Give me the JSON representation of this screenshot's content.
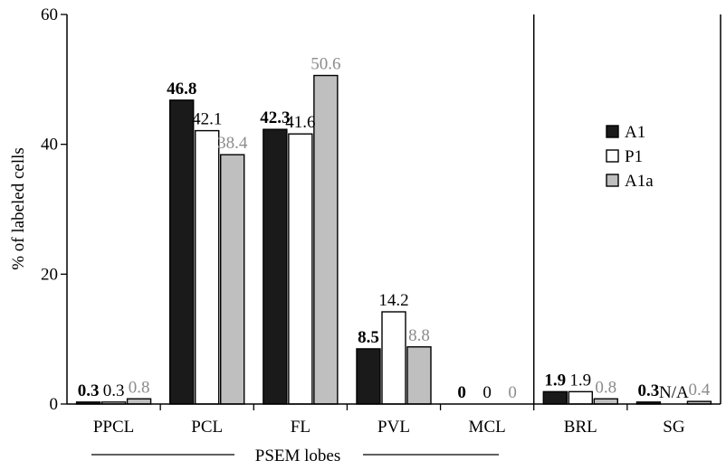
{
  "chart_data": {
    "type": "bar",
    "ylabel": "% of labeled cells",
    "xlabel": "PSEM lobes",
    "ylim": [
      0,
      60
    ],
    "yticks": [
      0,
      20,
      40,
      60
    ],
    "categories": [
      "PPCL",
      "PCL",
      "FL",
      "PVL",
      "MCL",
      "BRL",
      "SG"
    ],
    "series": [
      {
        "name": "A1",
        "color": "#1a1a1a",
        "values": [
          0.3,
          46.8,
          42.3,
          8.5,
          0,
          1.9,
          0.3
        ],
        "labels": [
          "0.3",
          "46.8",
          "42.3",
          "8.5",
          "0",
          "1.9",
          "0.3"
        ]
      },
      {
        "name": "P1",
        "color": "#ffffff",
        "values": [
          0.3,
          42.1,
          41.6,
          14.2,
          0,
          1.9,
          0
        ],
        "labels": [
          "0.3",
          "42.1",
          "41.6",
          "14.2",
          "0",
          "1.9",
          "N/A"
        ]
      },
      {
        "name": "A1a",
        "color": "#bfbfbf",
        "values": [
          0.8,
          38.4,
          50.6,
          8.8,
          0,
          0.8,
          0.4
        ],
        "labels": [
          "0.8",
          "38.4",
          "50.6",
          "8.8",
          "0",
          "0.8",
          "0.4"
        ]
      }
    ],
    "label_colors": [
      "#000000",
      "#000000",
      "#8c8c8c"
    ],
    "legend_position": "right",
    "separator_after_category": "MCL",
    "grid": false
  }
}
